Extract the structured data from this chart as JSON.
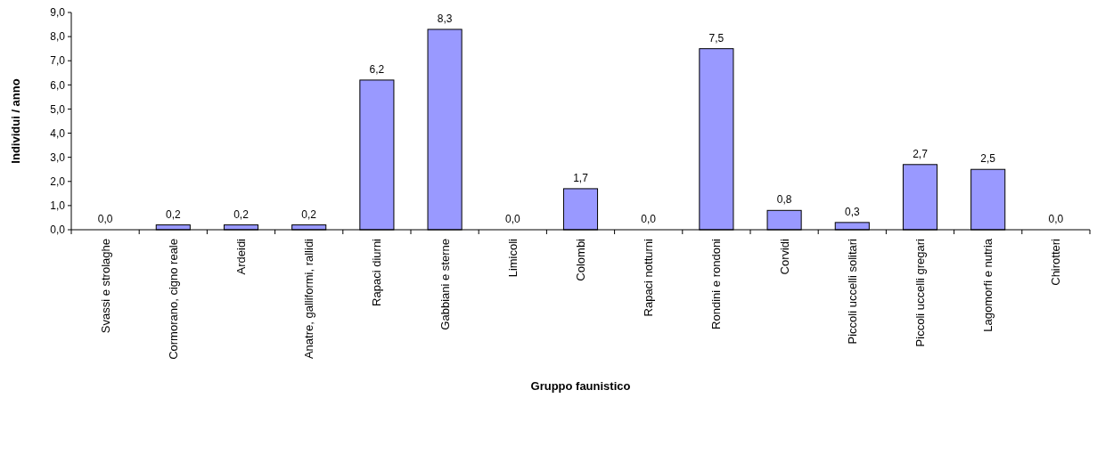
{
  "chart_data": {
    "type": "bar",
    "xlabel": "Gruppo faunistico",
    "ylabel": "Individui / anno",
    "categories": [
      "Svassi e strolaghe",
      "Cormorano, cigno reale",
      "Ardeidi",
      "Anatre, galliformi, rallidi",
      "Rapaci diurni",
      "Gabbiani e sterne",
      "Limicoli",
      "Colombi",
      "Rapaci notturni",
      "Rondini e rondoni",
      "Corvidi",
      "Piccoli uccelli solitari",
      "Piccoli uccelli gregari",
      "Lagomorfi e nutria",
      "Chirotteri"
    ],
    "values": [
      0,
      0.2,
      0.2,
      0.2,
      6.2,
      8.3,
      0,
      1.7,
      0,
      7.5,
      0.8,
      0.3,
      2.7,
      2.5,
      0
    ],
    "value_labels": [
      "0,0",
      "0,2",
      "0,2",
      "0,2",
      "6,2",
      "8,3",
      "0,0",
      "1,7",
      "0,0",
      "7,5",
      "0,8",
      "0,3",
      "2,7",
      "2,5",
      "0,0"
    ],
    "color": "#9999ff",
    "ylim": [
      0,
      9
    ],
    "yticks": [
      {
        "value": 0,
        "label": "0,0"
      },
      {
        "value": 1,
        "label": "1,0"
      },
      {
        "value": 2,
        "label": "2,0"
      },
      {
        "value": 3,
        "label": "3,0"
      },
      {
        "value": 4,
        "label": "4,0"
      },
      {
        "value": 5,
        "label": "5,0"
      },
      {
        "value": 6,
        "label": "6,0"
      },
      {
        "value": 7,
        "label": "7,0"
      },
      {
        "value": 8,
        "label": "8,0"
      },
      {
        "value": 9,
        "label": "9,0"
      }
    ],
    "grid": false
  }
}
